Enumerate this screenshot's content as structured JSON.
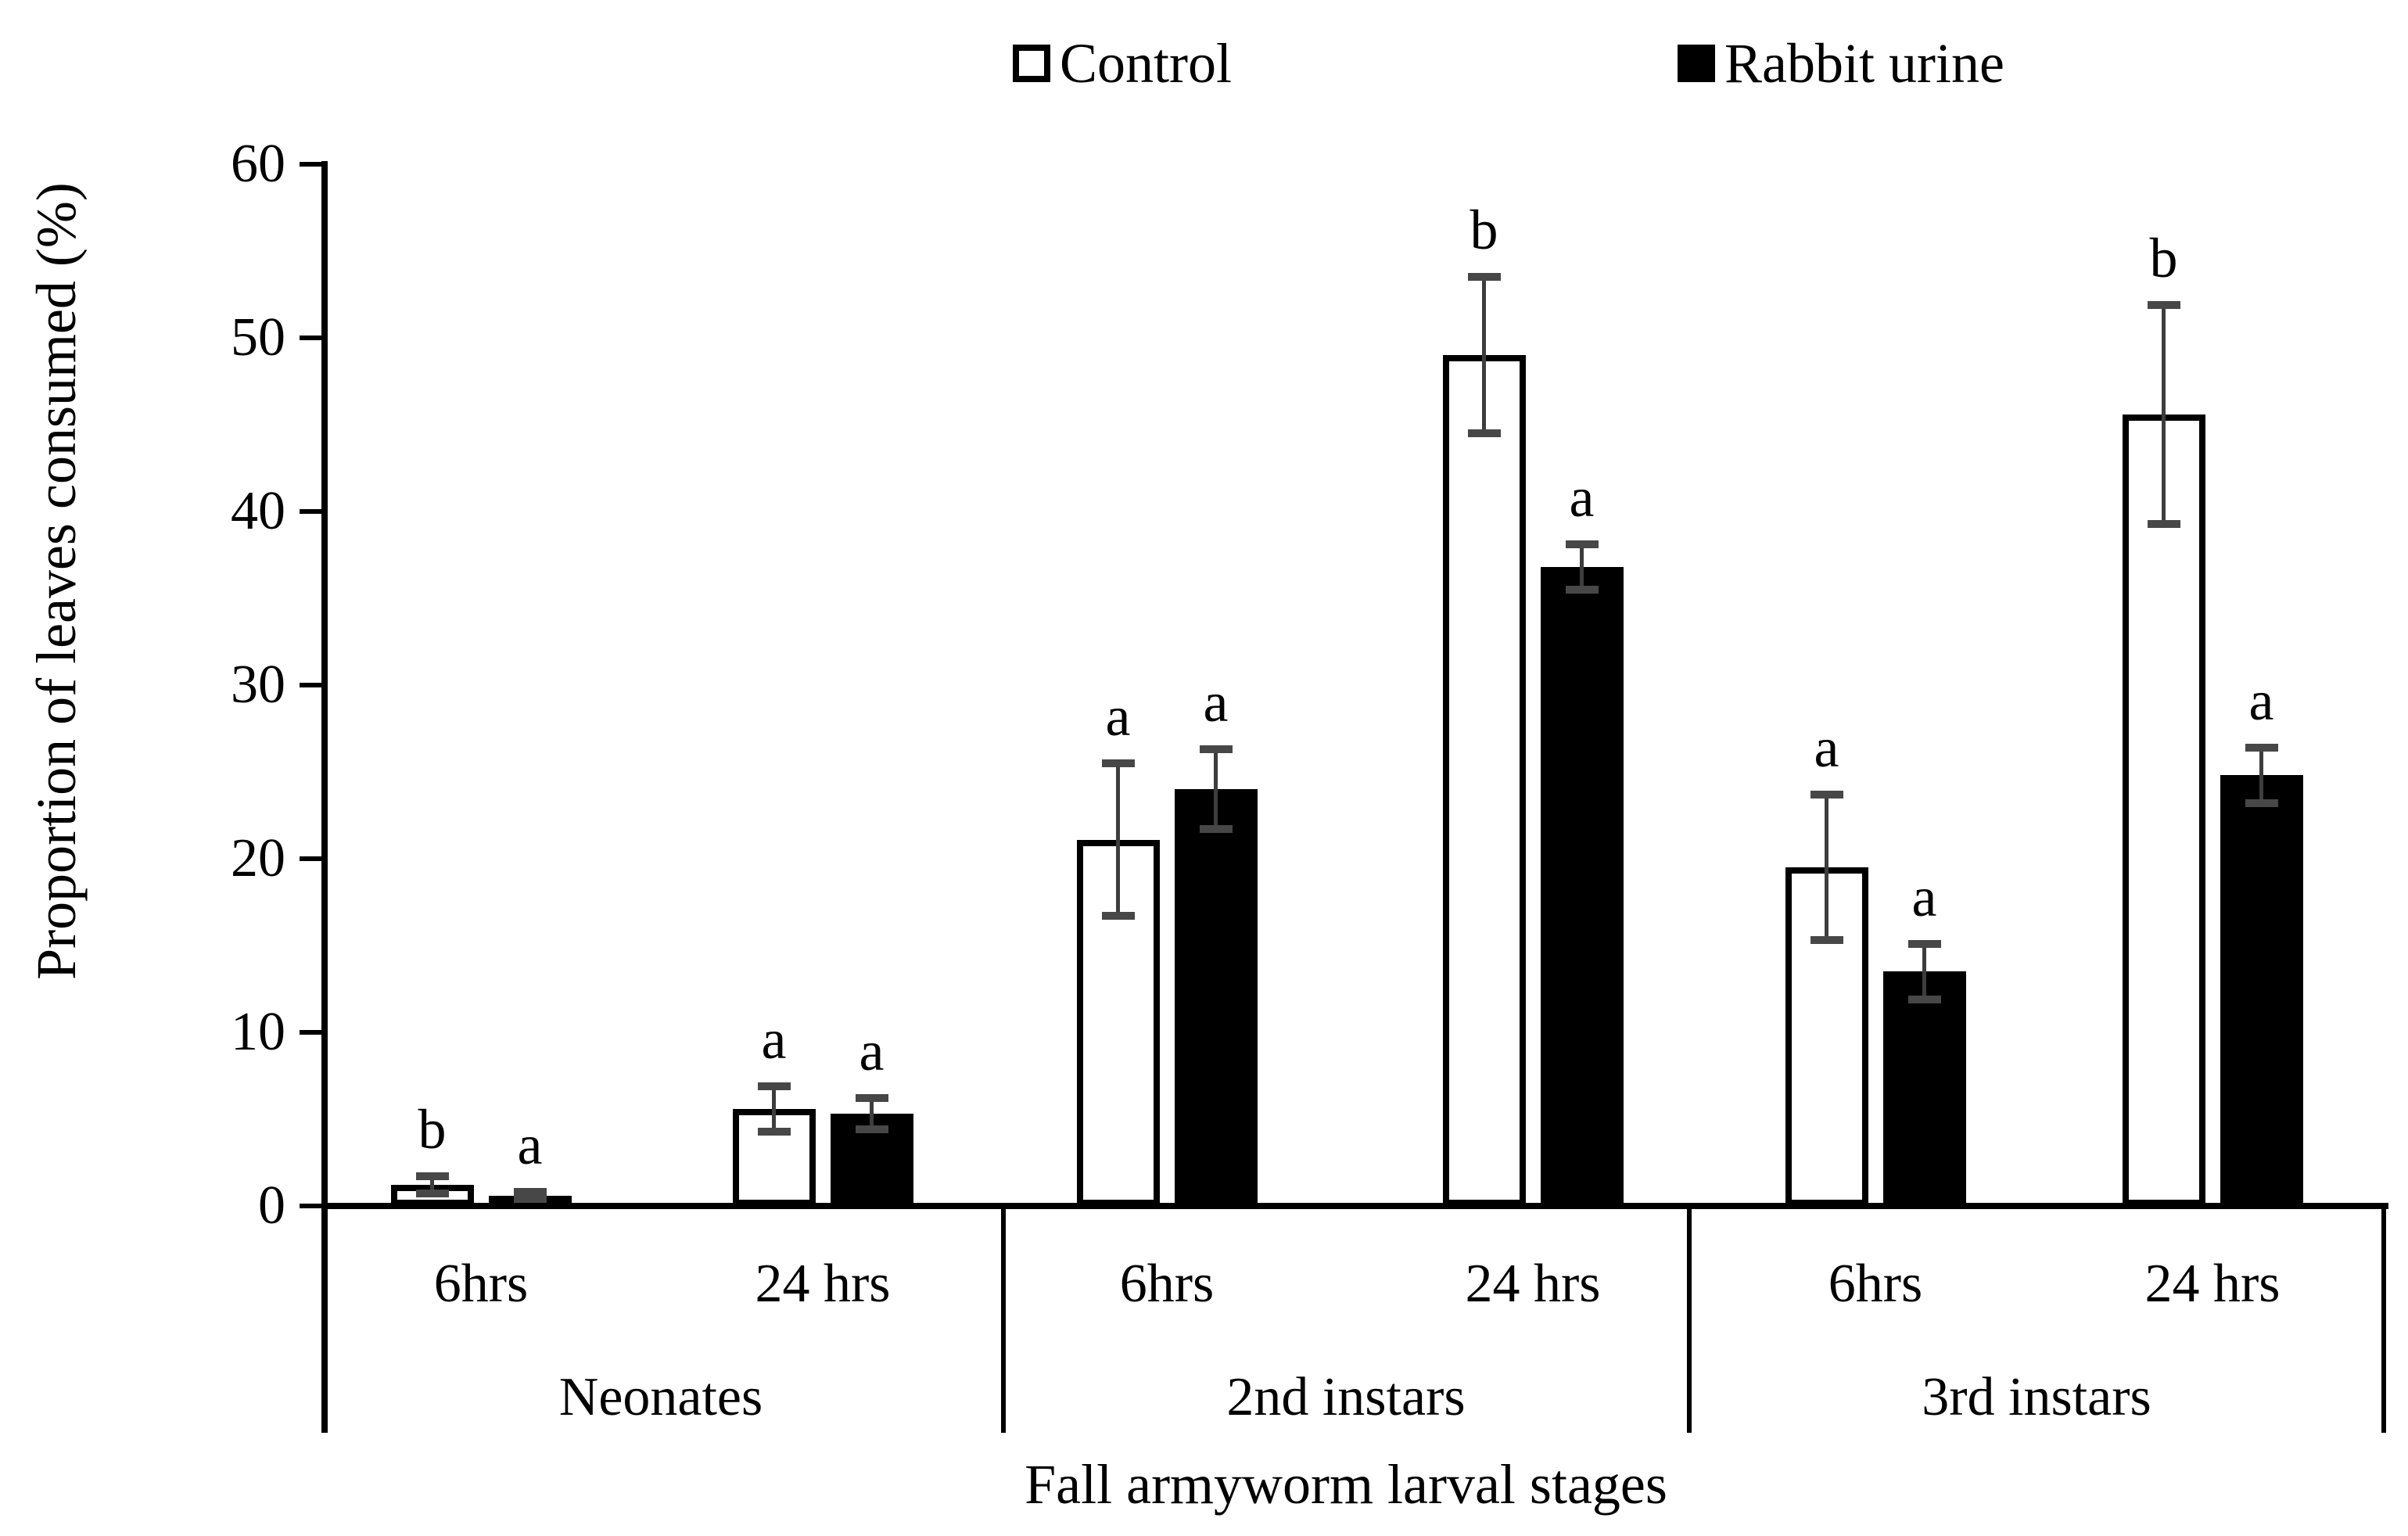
{
  "chart_data": {
    "type": "bar",
    "title": "",
    "xlabel": "Fall armyworm larval stages",
    "ylabel": "Proportion of leaves consumed (%)",
    "ylim": [
      0,
      60
    ],
    "yticks": [
      0,
      10,
      20,
      30,
      40,
      50,
      60
    ],
    "grid": "off",
    "legend_position": "top",
    "groups": [
      "Neonates",
      "2nd instars",
      "3rd instars"
    ],
    "times": [
      "6hrs",
      "24 hrs"
    ],
    "categories": [
      "Neonates 6hrs",
      "Neonates 24 hrs",
      "2nd instars 6hrs",
      "2nd instars 24 hrs",
      "3rd instars 6hrs",
      "3rd instars 24 hrs"
    ],
    "series": [
      {
        "name": "Control",
        "fill": "#ffffff",
        "border": "#000000",
        "values": [
          1.2,
          5.6,
          21.1,
          49.0,
          19.5,
          45.6
        ],
        "errors": [
          0.5,
          1.3,
          4.4,
          4.5,
          4.2,
          6.3
        ],
        "letters": [
          "b",
          "a",
          "a",
          "b",
          "a",
          "b"
        ]
      },
      {
        "name": "Rabbit urine",
        "fill": "#000000",
        "border": "#000000",
        "values": [
          0.6,
          5.3,
          24.0,
          36.8,
          13.5,
          24.8
        ],
        "errors": [
          0.2,
          0.9,
          2.3,
          1.3,
          1.6,
          1.6
        ],
        "letters": [
          "a",
          "a",
          "a",
          "a",
          "a",
          "a"
        ]
      }
    ],
    "error_bar_color": "#3d3d3d",
    "axis_color": "#000000"
  },
  "legend": {
    "control_label": "Control",
    "rabbit_label": "Rabbit urine"
  }
}
